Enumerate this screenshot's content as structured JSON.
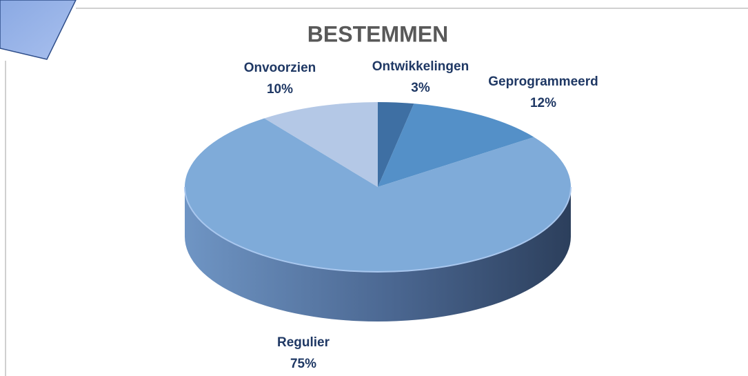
{
  "chart_data": {
    "type": "pie3d",
    "title": "BESTEMMEN",
    "categories": [
      "Ontwikkelingen",
      "Geprogrammeerd",
      "Regulier",
      "Onvoorzien"
    ],
    "values": [
      3,
      12,
      75,
      10
    ],
    "value_labels": [
      "3%",
      "12%",
      "75%",
      "10%"
    ],
    "colors": [
      "#3e6fa3",
      "#5490c8",
      "#7fabd9",
      "#b4c8e6"
    ]
  }
}
